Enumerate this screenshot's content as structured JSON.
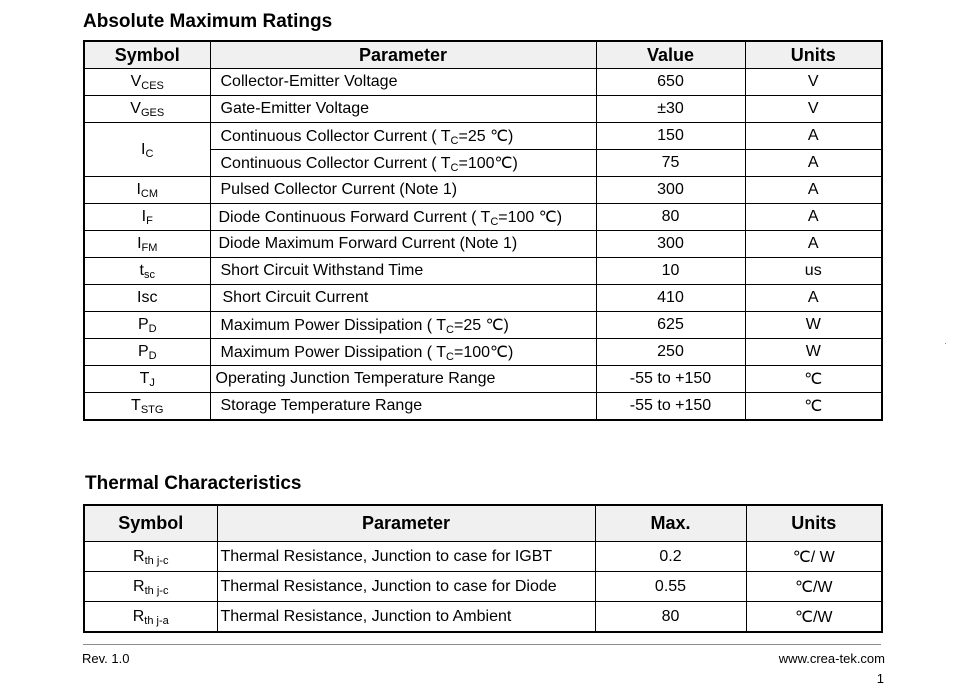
{
  "absolute_max": {
    "title": "Absolute Maximum Ratings",
    "headers": {
      "symbol": "Symbol",
      "parameter": "Parameter",
      "value": "Value",
      "units": "Units"
    },
    "rows": [
      {
        "sym": "V",
        "sub": "CES",
        "param": "Collector-Emitter Voltage",
        "value": "650",
        "unit": "V"
      },
      {
        "sym": "V",
        "sub": "GES",
        "param": "Gate-Emitter Voltage",
        "value": "±30",
        "unit": "V"
      },
      {
        "sym": "I",
        "sub": "C",
        "param_a": "Continuous Collector Current ( T",
        "param_sub": "C",
        "param_b": "=25 ℃)",
        "value": "150",
        "unit": "A"
      },
      {
        "param_a": "Continuous Collector Current  ( T",
        "param_sub": "C",
        "param_b": "=100℃)",
        "value": "75",
        "unit": "A"
      },
      {
        "sym": "I",
        "sub": "CM",
        "param": "Pulsed Collector Current (Note 1)",
        "value": "300",
        "unit": "A"
      },
      {
        "sym": "I",
        "sub": "F",
        "param_a": "Diode Continuous Forward Current ( T",
        "param_sub": "C",
        "param_b": "=100 ℃)",
        "value": "80",
        "unit": "A"
      },
      {
        "sym": "I",
        "sub": "FM",
        "param": "Diode Maximum Forward Current (Note 1)",
        "value": "300",
        "unit": "A"
      },
      {
        "sym": "t",
        "sub": "sc",
        "param": "Short Circuit Withstand Time",
        "value": "10",
        "unit": "us"
      },
      {
        "sym": "Isc",
        "sub": "",
        "param": "Short Circuit Current",
        "value": "410",
        "unit": "A"
      },
      {
        "sym": "P",
        "sub": "D",
        "param_a": "Maximum Power Dissipation ( T",
        "param_sub": "C",
        "param_b": "=25 ℃)",
        "value": "625",
        "unit": "W"
      },
      {
        "sym": "P",
        "sub": "D",
        "param_a": "Maximum Power Dissipation ( T",
        "param_sub": "C",
        "param_b": "=100℃)",
        "value": "250",
        "unit": "W"
      },
      {
        "sym": "T",
        "sub": "J",
        "param": "Operating Junction Temperature Range",
        "value": "-55 to +150",
        "unit": "℃"
      },
      {
        "sym": "T",
        "sub": "STG",
        "param": "Storage Temperature Range",
        "value": "-55 to +150",
        "unit": "℃"
      }
    ]
  },
  "thermal": {
    "title": "Thermal Characteristics",
    "headers": {
      "symbol": "Symbol",
      "parameter": "Parameter",
      "max": "Max.",
      "units": "Units"
    },
    "rows": [
      {
        "sym": "R",
        "sub": "th j-c",
        "param": "Thermal Resistance, Junction to case for IGBT",
        "max": "0.2",
        "unit": "℃/ W"
      },
      {
        "sym": "R",
        "sub": "th j-c",
        "param": "Thermal Resistance, Junction to case for Diode",
        "max": "0.55",
        "unit": "℃/W"
      },
      {
        "sym": "R",
        "sub": "th j-a",
        "param": "Thermal Resistance, Junction to Ambient",
        "max": "80",
        "unit": "℃/W"
      }
    ]
  },
  "footer": {
    "revision": "Rev. 1.0",
    "website": "www.crea-tek.com",
    "page": "1"
  }
}
